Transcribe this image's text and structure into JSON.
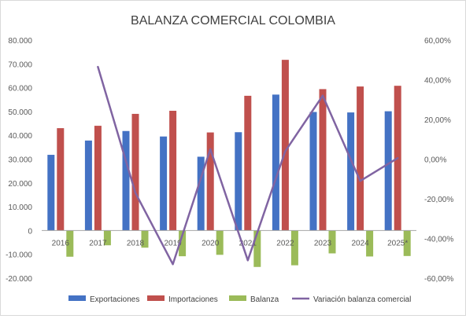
{
  "chart_data": {
    "type": "bar",
    "title": "BALANZA COMERCIAL COLOMBIA",
    "categories": [
      "2016",
      "2017",
      "2018",
      "2019",
      "2020",
      "2021",
      "2022",
      "2023",
      "2024",
      "2025*"
    ],
    "series": [
      {
        "name": "Exportaciones",
        "type": "bar",
        "axis": "left",
        "color": "#4472C4",
        "values": [
          31800,
          37800,
          41800,
          39500,
          31000,
          41300,
          57100,
          49800,
          49600,
          50100
        ]
      },
      {
        "name": "Importaciones",
        "type": "bar",
        "axis": "left",
        "color": "#C0504D",
        "values": [
          43000,
          44000,
          49000,
          50300,
          41200,
          56600,
          71700,
          59400,
          60500,
          60800
        ]
      },
      {
        "name": "Balanza",
        "type": "bar",
        "axis": "left",
        "color": "#9BBB59",
        "values": [
          -11000,
          -6200,
          -7200,
          -10800,
          -10200,
          -15300,
          -14600,
          -9600,
          -10900,
          -10700
        ]
      },
      {
        "name": "Variación balanza comercial",
        "type": "line",
        "axis": "right",
        "color": "#8064A2",
        "values": [
          null,
          46.5,
          -17,
          -53,
          5,
          -51,
          4,
          32,
          -11,
          0.5
        ]
      }
    ],
    "y_left": {
      "min": -20000,
      "max": 80000,
      "ticks": [
        80000,
        70000,
        60000,
        50000,
        40000,
        30000,
        20000,
        10000,
        0,
        -10000,
        -20000
      ],
      "tick_labels": [
        "80.000",
        "70.000",
        "60.000",
        "50.000",
        "40.000",
        "30.000",
        "20.000",
        "10.000",
        "0",
        "-10.000",
        "-20.000"
      ]
    },
    "y_right": {
      "min": -60,
      "max": 60,
      "ticks": [
        60,
        40,
        20,
        0,
        -20,
        -40,
        -60
      ],
      "tick_labels": [
        "60,00%",
        "40,00%",
        "20,00%",
        "0,00%",
        "-20,00%",
        "-40,00%",
        "-60,00%"
      ]
    },
    "grid": false,
    "legend_position": "bottom"
  }
}
